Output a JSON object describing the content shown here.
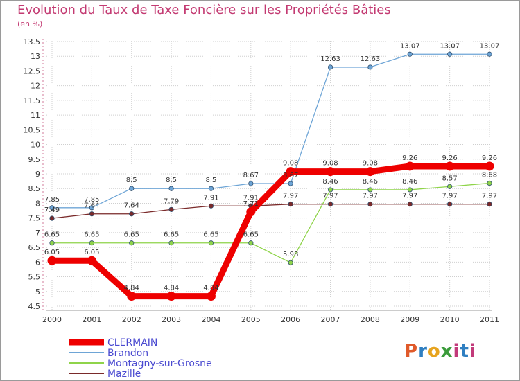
{
  "title": "Evolution du Taux de Taxe Foncière sur les Propriétés Bâties",
  "unit_label": "(en %)",
  "logo_text": "Proxiti",
  "chart_data": {
    "type": "line",
    "title": "Evolution du Taux de Taxe Foncière sur les Propriétés Bâties",
    "ylabel": "(en %)",
    "xlabel": "",
    "x": [
      "2000",
      "2001",
      "2002",
      "2003",
      "2004",
      "2005",
      "2006",
      "2007",
      "2008",
      "2009",
      "2010",
      "2011"
    ],
    "ylim": [
      4.5,
      13.5
    ],
    "yticks": [
      "4.5",
      "5",
      "5.5",
      "6",
      "6.5",
      "7",
      "7.5",
      "8",
      "8.5",
      "9",
      "9.5",
      "10",
      "10.5",
      "11",
      "11.5",
      "12",
      "12.5",
      "13",
      "13.5"
    ],
    "legend_position": "bottom-left",
    "series": [
      {
        "name": "CLERMAIN",
        "color": "#ee0000",
        "values": [
          6.05,
          6.05,
          4.84,
          4.84,
          4.84,
          7.71,
          9.08,
          9.08,
          9.08,
          9.26,
          9.26,
          9.26
        ],
        "labels": [
          "6.05",
          "6.05",
          "4.84",
          "4.84",
          "4.84",
          "7.71",
          "9.08",
          "9.08",
          "9.08",
          "9.26",
          "9.26",
          "9.26"
        ]
      },
      {
        "name": "Brandon",
        "color": "#6ea5d6",
        "values": [
          7.85,
          7.85,
          8.5,
          8.5,
          8.5,
          8.67,
          8.67,
          12.63,
          12.63,
          13.07,
          13.07,
          13.07
        ],
        "labels": [
          "7.85",
          "7.85",
          "8.5",
          "8.5",
          "8.5",
          "8.67",
          "8.67",
          "12.63",
          "12.63",
          "13.07",
          "13.07",
          "13.07"
        ]
      },
      {
        "name": "Montagny-sur-Grosne",
        "color": "#8fd44a",
        "values": [
          6.65,
          6.65,
          6.65,
          6.65,
          6.65,
          6.65,
          5.98,
          8.46,
          8.46,
          8.46,
          8.57,
          8.68
        ],
        "labels": [
          "6.65",
          "6.65",
          "6.65",
          "6.65",
          "6.65",
          "6.65",
          "5.98",
          "8.46",
          "8.46",
          "8.46",
          "8.57",
          "8.68"
        ]
      },
      {
        "name": "Mazille",
        "color": "#7a2a2a",
        "values": [
          7.49,
          7.64,
          7.64,
          7.79,
          7.91,
          7.91,
          7.97,
          7.97,
          7.97,
          7.97,
          7.97,
          7.97
        ],
        "labels": [
          "7.49",
          "7.64",
          "7.64",
          "7.79",
          "7.91",
          "7.91",
          "7.97",
          "7.97",
          "7.97",
          "7.97",
          "7.97",
          "7.97"
        ]
      }
    ]
  }
}
